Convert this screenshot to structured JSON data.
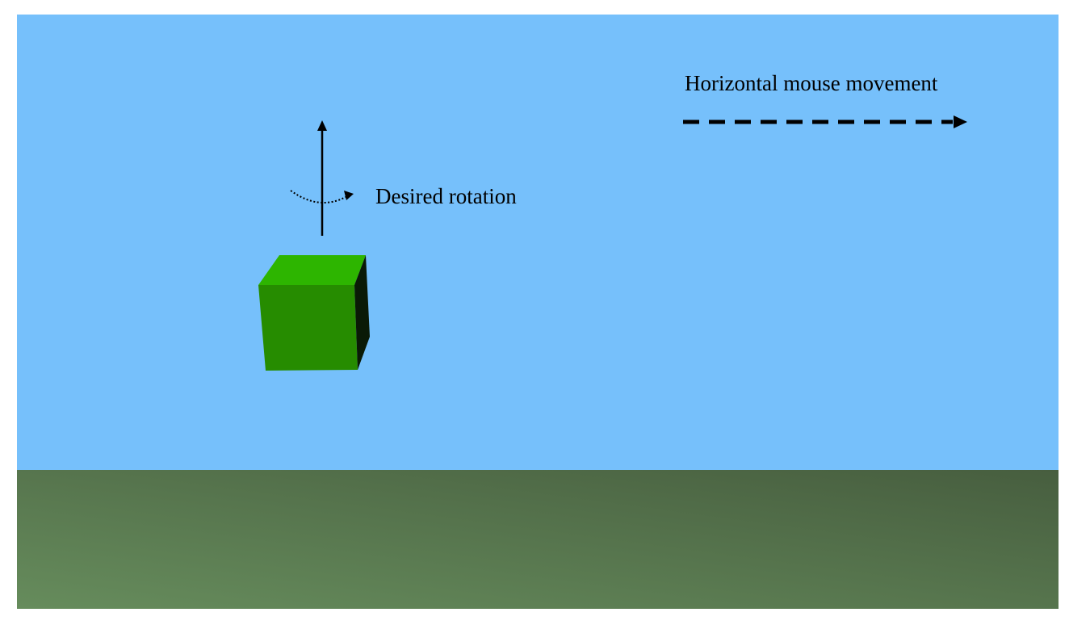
{
  "labels": {
    "rotation": "Desired rotation",
    "mouse_movement": "Horizontal mouse movement"
  },
  "colors": {
    "sky": "#76c0fb",
    "ground_left": "#668c5c",
    "ground_right": "#475e3f",
    "cube_top": "#2db500",
    "cube_front": "#268c00",
    "cube_side": "#0a1a06",
    "ink": "#000000"
  }
}
